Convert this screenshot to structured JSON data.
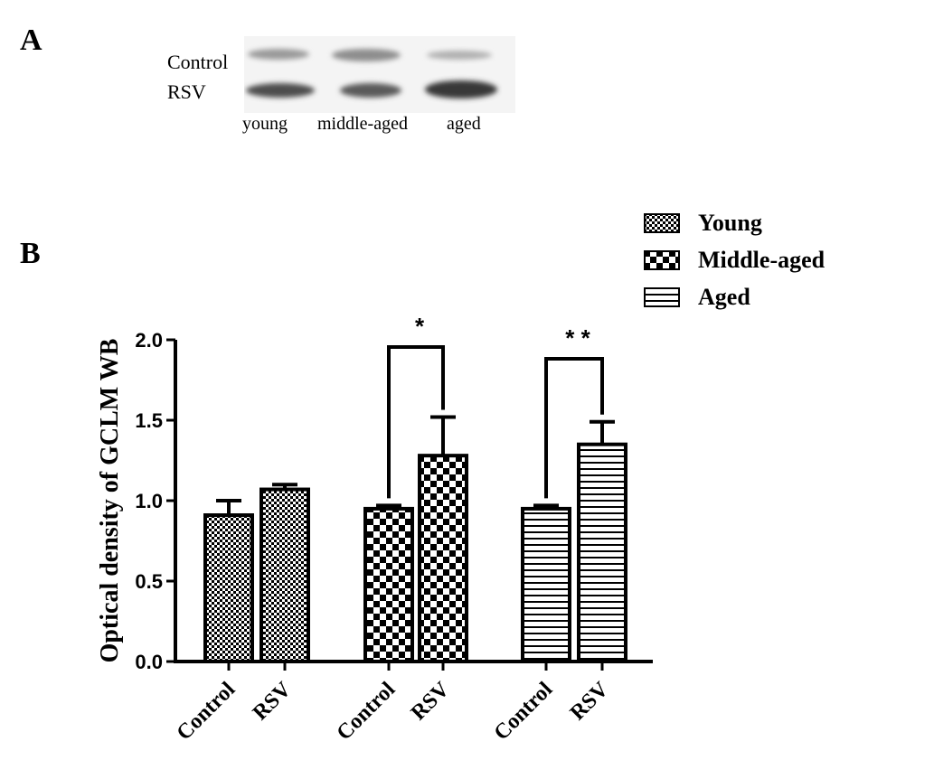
{
  "panel_a": {
    "letter": "A",
    "row_labels": [
      "Control",
      "RSV"
    ],
    "lane_labels": [
      "young",
      "middle-aged",
      "aged"
    ]
  },
  "panel_b": {
    "letter": "B"
  },
  "chart_data": {
    "type": "bar",
    "ylabel": "Optical density of GCLM WB",
    "xlabel": "",
    "ylim": [
      0,
      2.0
    ],
    "yticks": [
      "0.0",
      "0.5",
      "1.0",
      "1.5",
      "2.0"
    ],
    "groups": [
      {
        "name": "Young",
        "pattern": "fine-check",
        "bars": [
          {
            "category": "Control",
            "value": 0.91,
            "error": 0.09
          },
          {
            "category": "RSV",
            "value": 1.07,
            "error": 0.03
          }
        ],
        "significance": ""
      },
      {
        "name": "Middle-aged",
        "pattern": "checker",
        "bars": [
          {
            "category": "Control",
            "value": 0.95,
            "error": 0.02
          },
          {
            "category": "RSV",
            "value": 1.28,
            "error": 0.24
          }
        ],
        "significance": "*"
      },
      {
        "name": "Aged",
        "pattern": "horizontal-stripes",
        "bars": [
          {
            "category": "Control",
            "value": 0.95,
            "error": 0.02
          },
          {
            "category": "RSV",
            "value": 1.35,
            "error": 0.14
          }
        ],
        "significance": "* *"
      }
    ],
    "legend": [
      "Young",
      "Middle-aged",
      "Aged"
    ],
    "legend_position": "top-right",
    "grid": false
  }
}
